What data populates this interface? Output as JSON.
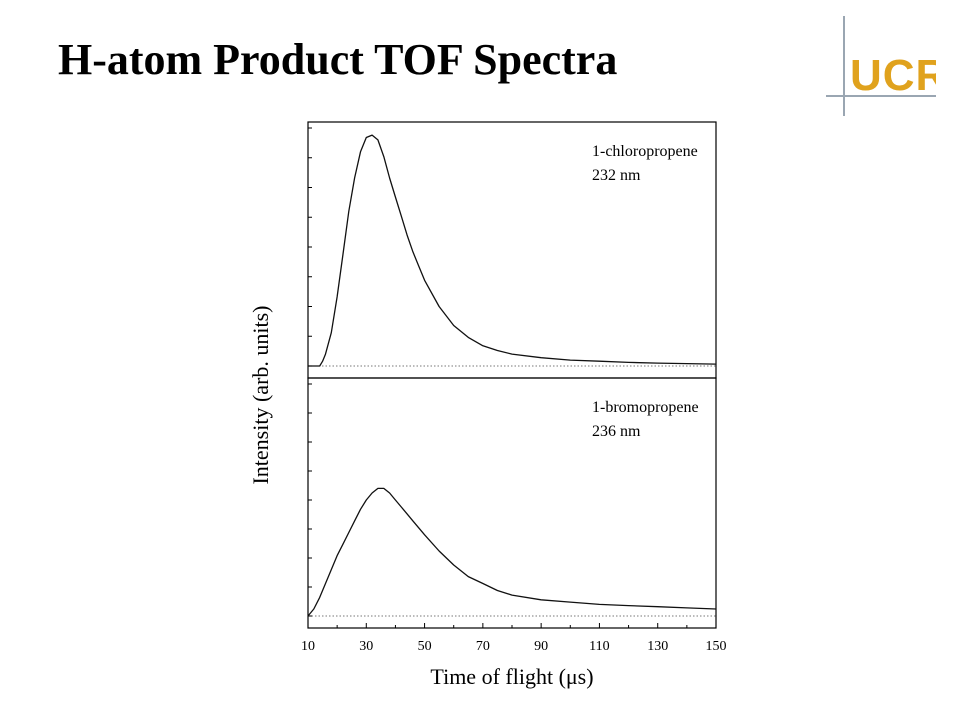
{
  "slide": {
    "title": "H-atom Product TOF Spectra"
  },
  "logo": {
    "text": "UCR",
    "letter_color": "#e0a21d",
    "line_color": "#9aa6b2"
  },
  "chart_data": {
    "type": "line",
    "xlabel": "Time of flight (μs)",
    "ylabel": "Intensity (arb. units)",
    "xlim": [
      10,
      150
    ],
    "xticks": [
      10,
      30,
      50,
      70,
      90,
      110,
      130,
      150
    ],
    "grid": false,
    "line_color": "#111111",
    "baseline_color": "#777777",
    "panels": [
      {
        "label_lines": [
          "1-chloropropene",
          "232 nm"
        ],
        "ylim": [
          0,
          1.0
        ],
        "series": [
          {
            "x": [
              10,
              14,
              15,
              16,
              18,
              20,
              22,
              24,
              26,
              28,
              30,
              32,
              34,
              36,
              38,
              40,
              42,
              44,
              46,
              48,
              50,
              55,
              60,
              65,
              70,
              75,
              80,
              90,
              100,
              110,
              120,
              130,
              140,
              150
            ],
            "y": [
              0.0,
              0.0,
              0.02,
              0.05,
              0.14,
              0.29,
              0.47,
              0.65,
              0.79,
              0.9,
              0.96,
              0.97,
              0.95,
              0.88,
              0.79,
              0.71,
              0.63,
              0.55,
              0.48,
              0.42,
              0.36,
              0.25,
              0.17,
              0.12,
              0.085,
              0.065,
              0.05,
              0.035,
              0.025,
              0.02,
              0.015,
              0.012,
              0.01,
              0.008
            ]
          }
        ]
      },
      {
        "label_lines": [
          "1-bromopropene",
          "236 nm"
        ],
        "ylim": [
          0,
          1.0
        ],
        "series": [
          {
            "x": [
              10,
              12,
              14,
              16,
              18,
              20,
              22,
              24,
              26,
              28,
              30,
              32,
              34,
              36,
              38,
              40,
              42,
              44,
              46,
              48,
              50,
              55,
              60,
              65,
              70,
              75,
              80,
              90,
              100,
              110,
              120,
              130,
              140,
              150
            ],
            "y": [
              0.0,
              0.03,
              0.08,
              0.14,
              0.2,
              0.26,
              0.31,
              0.36,
              0.41,
              0.46,
              0.5,
              0.53,
              0.55,
              0.55,
              0.53,
              0.5,
              0.47,
              0.44,
              0.41,
              0.38,
              0.35,
              0.28,
              0.22,
              0.17,
              0.14,
              0.11,
              0.09,
              0.07,
              0.06,
              0.05,
              0.045,
              0.04,
              0.035,
              0.03
            ]
          }
        ]
      }
    ]
  }
}
